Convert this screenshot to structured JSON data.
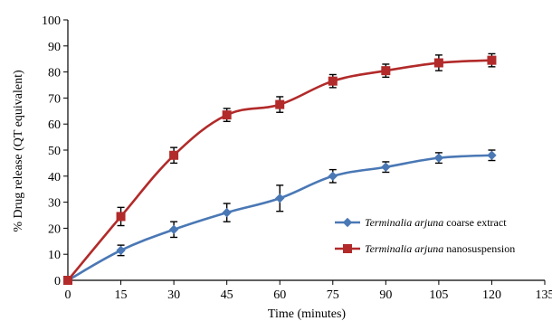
{
  "chart_data": {
    "type": "line",
    "title": "",
    "xlabel": "Time (minutes)",
    "ylabel": "% Drug release (QT equivalent)",
    "xlim": [
      0,
      135
    ],
    "ylim": [
      0,
      100
    ],
    "xticks": [
      0,
      15,
      30,
      45,
      60,
      75,
      90,
      105,
      120,
      135
    ],
    "yticks": [
      0,
      10,
      20,
      30,
      40,
      50,
      60,
      70,
      80,
      90,
      100
    ],
    "grid": false,
    "legend_position": "right",
    "x": [
      0,
      15,
      30,
      45,
      60,
      75,
      90,
      105,
      120
    ],
    "series": [
      {
        "name_italic": "Terminalia arjuna",
        "name_rest": " coarse extract",
        "color": "#4a78b5",
        "marker": "diamond",
        "values": [
          0,
          11.5,
          19.5,
          26,
          31.5,
          40,
          43.5,
          47,
          48
        ],
        "errors": [
          0.5,
          2,
          3,
          3.5,
          5,
          2.5,
          2,
          2,
          2
        ]
      },
      {
        "name_italic": "Terminalia arjuna",
        "name_rest": " nanosuspension",
        "color": "#b22a2a",
        "marker": "square",
        "values": [
          0,
          24.5,
          48,
          63.5,
          67.5,
          76.5,
          80.5,
          83.5,
          84.5
        ],
        "errors": [
          0.5,
          3.5,
          3,
          2.5,
          3,
          2.5,
          2.5,
          3,
          2.5
        ]
      }
    ]
  }
}
